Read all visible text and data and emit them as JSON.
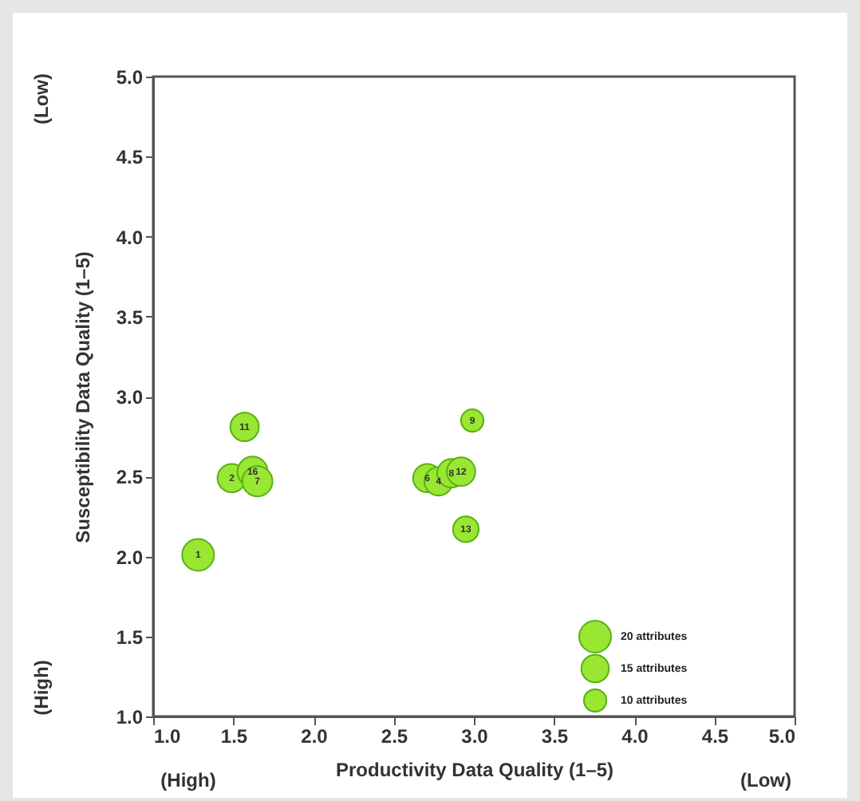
{
  "chart_data": {
    "type": "bubble",
    "xlabel": "Productivity Data Quality (1–5)",
    "ylabel": "Susceptibility Data Quality (1–5)",
    "x": [
      1.28,
      1.49,
      1.57,
      1.62,
      1.65,
      2.71,
      2.78,
      2.86,
      2.92,
      2.99,
      2.95
    ],
    "series": [
      {
        "color": "#99e633",
        "values": [
          2.01,
          2.49,
          2.81,
          2.53,
          2.47,
          2.49,
          2.47,
          2.52,
          2.53,
          2.85,
          2.17
        ],
        "sizes": [
          20,
          16,
          16,
          18,
          18,
          16,
          16,
          16,
          16,
          10,
          13
        ]
      }
    ],
    "size_legend": [
      {
        "value": 20,
        "label": "20 attributes"
      },
      {
        "value": 15,
        "label": "15 attributes"
      },
      {
        "value": 10,
        "label": "10 attributes"
      }
    ],
    "xlim": [
      1.0,
      5.0
    ],
    "ylim": [
      1.0,
      5.0
    ],
    "xticks": [
      {
        "value": 1.0,
        "label": "1.0"
      },
      1.5,
      {
        "value": 2.0,
        "label": "2.0"
      },
      2.5,
      {
        "value": 3.0,
        "label": "3.0"
      },
      3.5,
      {
        "value": 4.0,
        "label": "4.0"
      },
      4.5,
      {
        "value": 5.0,
        "label": "5.0"
      }
    ],
    "yticks": [
      {
        "value": 1.0,
        "label": "1.0"
      },
      1.5,
      {
        "value": 2.0,
        "label": "2.0"
      },
      2.5,
      {
        "value": 3.0,
        "label": "3.0"
      },
      3.5,
      {
        "value": 4.0,
        "label": "4.0"
      },
      4.5,
      {
        "value": 5.0,
        "label": "5.0"
      }
    ],
    "grid": false,
    "annotations": [
      "(Low)",
      "(High)",
      "(High)",
      "(Low)",
      {
        "text": "1",
        "x": 1.28,
        "y": 2.01
      },
      {
        "text": "2",
        "x": 1.49,
        "y": 2.49
      },
      {
        "text": "11",
        "x": 1.57,
        "y": 2.81
      },
      {
        "text": "16",
        "x": 1.62,
        "y": 2.53
      },
      {
        "text": "7",
        "x": 1.65,
        "y": 2.47
      },
      {
        "text": "6",
        "x": 2.71,
        "y": 2.49
      },
      {
        "text": "4",
        "x": 2.78,
        "y": 2.47
      },
      {
        "text": "8",
        "x": 2.86,
        "y": 2.52
      },
      {
        "text": "12",
        "x": 2.92,
        "y": 2.53
      },
      {
        "text": "9",
        "x": 2.99,
        "y": 2.85
      },
      {
        "text": "13",
        "x": 2.95,
        "y": 2.17
      }
    ]
  }
}
